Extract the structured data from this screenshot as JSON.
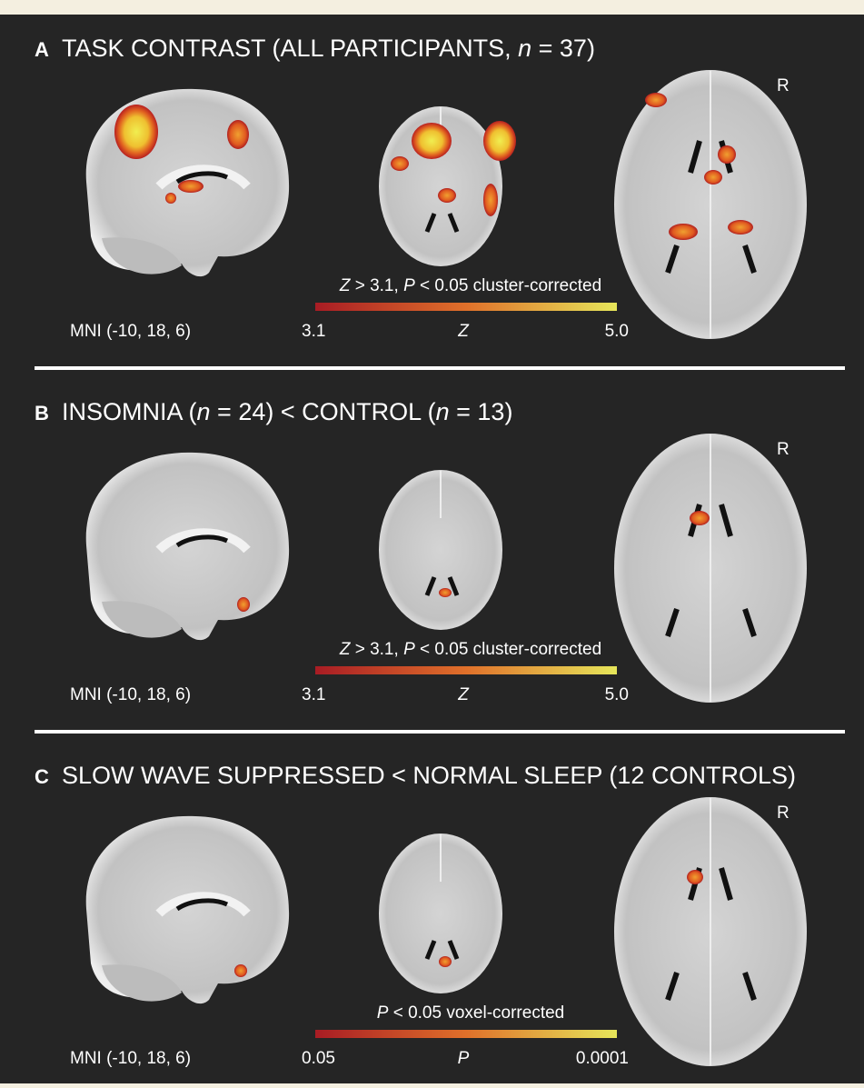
{
  "panels": [
    {
      "letter": "A",
      "title": [
        "TASK CONTRAST (ALL PARTICIPANTS, ",
        "n",
        " = 37)"
      ],
      "orientation": "R",
      "coords": "MNI (-10, 18, 6)",
      "colorbar": {
        "caption": [
          "Z",
          " > 3.1, ",
          "P",
          " < 0.05 cluster-corrected"
        ],
        "min": "3.1",
        "label": "Z",
        "max": "5.0"
      }
    },
    {
      "letter": "B",
      "title": [
        "INSOMNIA (",
        "n",
        " = 24) < CONTROL (",
        "n",
        " = 13)"
      ],
      "orientation": "R",
      "coords": "MNI (-10, 18, 6)",
      "colorbar": {
        "caption": [
          "Z",
          " > 3.1, ",
          "P",
          " < 0.05 cluster-corrected"
        ],
        "min": "3.1",
        "label": "Z",
        "max": "5.0"
      }
    },
    {
      "letter": "C",
      "title": [
        "SLOW WAVE SUPPRESSED < NORMAL SLEEP (12 CONTROLS)"
      ],
      "orientation": "R",
      "coords": "MNI (-10, 18, 6)",
      "colorbar": {
        "caption": [
          "P",
          " < 0.05 voxel-corrected"
        ],
        "min": "0.05",
        "label": "P",
        "max": "0.0001"
      }
    }
  ]
}
